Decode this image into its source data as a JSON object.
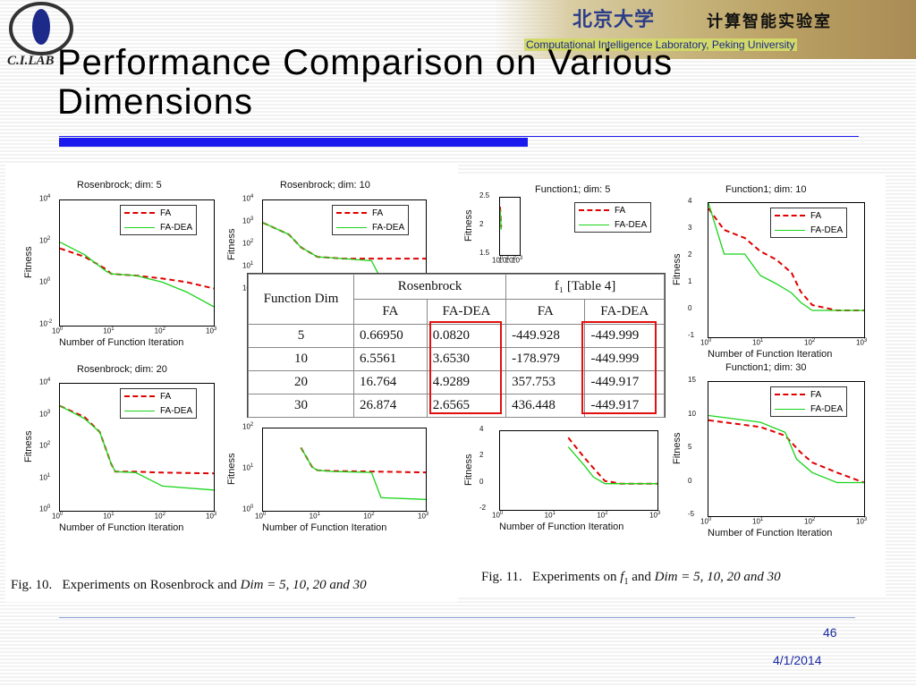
{
  "header": {
    "logo_text": "C.I.LAB",
    "banner_cn_1": "北京大学",
    "banner_cn_2": "计算智能实验室",
    "banner_en": "Computational Intelligence Laboratory, Peking University"
  },
  "title": "Performance Comparison on Various Dimensions",
  "colors": {
    "fa": "#e00000",
    "fa_dea": "#1ad41a",
    "accent": "#1a1aee",
    "highlight": "#e01010"
  },
  "figure_left": {
    "caption_prefix": "Fig. 10.",
    "caption_text": "Experiments on Rosenbrock and",
    "caption_math": "Dim = 5,  10,  20  and  30"
  },
  "figure_right": {
    "caption_prefix": "Fig. 11.",
    "caption_text": "Experiments on",
    "caption_math_f": "f",
    "caption_and": "and",
    "caption_math": "Dim = 5,  10,  20  and  30"
  },
  "table": {
    "h_function_dim": "Function Dim",
    "h_rosenbrock": "Rosenbrock",
    "h_f1": "f₁ [Table 4]",
    "sub": [
      "FA",
      "FA-DEA",
      "FA",
      "FA-DEA"
    ],
    "rows": [
      {
        "dim": "5",
        "r_fa": "0.66950",
        "r_dea": "0.0820",
        "f_fa": "-449.928",
        "f_dea": "-449.999"
      },
      {
        "dim": "10",
        "r_fa": "6.5561",
        "r_dea": "3.6530",
        "f_fa": "-178.979",
        "f_dea": "-449.999"
      },
      {
        "dim": "20",
        "r_fa": "16.764",
        "r_dea": "4.9289",
        "f_fa": "357.753",
        "f_dea": "-449.917"
      },
      {
        "dim": "30",
        "r_fa": "26.874",
        "r_dea": "2.6565",
        "f_fa": "436.448",
        "f_dea": "-449.917"
      }
    ]
  },
  "chart_data": [
    {
      "type": "line",
      "title": "Rosenbrock; dim: 5",
      "xlabel": "Number of Function Iteration",
      "ylabel": "Fitness",
      "x_scale": "log",
      "y_scale": "log",
      "xlim": [
        1,
        1000
      ],
      "ylim": [
        0.01,
        10000
      ],
      "x_ticks": [
        "10^0",
        "10^1",
        "10^2",
        "10^3"
      ],
      "y_ticks": [
        "10^4",
        "10^2",
        "10^0",
        "10^-2"
      ],
      "legend": [
        "FA",
        "FA-DEA"
      ],
      "legend_position": "top-right",
      "series": [
        {
          "name": "FA",
          "x": [
            1,
            3,
            8,
            10,
            30,
            100,
            300,
            1000
          ],
          "y": [
            50,
            20,
            5,
            3,
            2.5,
            1.8,
            1.2,
            0.6
          ]
        },
        {
          "name": "FA-DEA",
          "x": [
            1,
            3,
            8,
            10,
            30,
            100,
            300,
            1000
          ],
          "y": [
            100,
            25,
            4,
            3,
            2.5,
            1.2,
            0.4,
            0.08
          ]
        }
      ]
    },
    {
      "type": "line",
      "title": "Rosenbrock; dim: 10",
      "xlabel": "Number of Function Iteration",
      "ylabel": "Fitness",
      "x_scale": "log",
      "y_scale": "log",
      "xlim": [
        1,
        1000
      ],
      "ylim": [
        1,
        10000
      ],
      "x_ticks": [
        "10^0",
        "10^1",
        "10^2",
        "10^3"
      ],
      "y_ticks": [
        "10^4",
        "10^3",
        "10^2",
        "10^1",
        "10^0"
      ],
      "legend": [
        "FA",
        "FA-DEA"
      ],
      "legend_position": "top-right",
      "series": [
        {
          "name": "FA",
          "x": [
            1,
            3,
            5,
            10,
            30,
            100,
            1000
          ],
          "y": [
            1000,
            300,
            80,
            30,
            25,
            25,
            25
          ]
        },
        {
          "name": "FA-DEA",
          "x": [
            1,
            3,
            5,
            10,
            30,
            100,
            150,
            1000
          ],
          "y": [
            1000,
            300,
            80,
            30,
            25,
            20,
            3,
            2.5
          ]
        }
      ]
    },
    {
      "type": "line",
      "title": "Rosenbrock; dim: 20",
      "xlabel": "Number of Function Iteration",
      "ylabel": "Fitness",
      "x_scale": "log",
      "y_scale": "log",
      "xlim": [
        1,
        1000
      ],
      "ylim": [
        1,
        10000
      ],
      "x_ticks": [
        "10^0",
        "10^1",
        "10^2",
        "10^3"
      ],
      "y_ticks": [
        "10^4",
        "10^3",
        "10^2",
        "10^1",
        "10^0"
      ],
      "legend": [
        "FA",
        "FA-DEA"
      ],
      "legend_position": "top-right",
      "series": [
        {
          "name": "FA",
          "x": [
            1,
            3,
            6,
            10,
            12,
            30,
            100,
            1000
          ],
          "y": [
            2000,
            900,
            300,
            30,
            17,
            17,
            16,
            15
          ]
        },
        {
          "name": "FA-DEA",
          "x": [
            1,
            3,
            6,
            10,
            12,
            30,
            100,
            1000
          ],
          "y": [
            2000,
            800,
            300,
            30,
            17,
            16,
            6,
            4.5
          ]
        }
      ]
    },
    {
      "type": "line",
      "title": "Function1; dim: 5",
      "xlabel": "Number of Function Iteration",
      "ylabel": "Fitness",
      "x_scale": "log",
      "xlim": [
        1,
        1000
      ],
      "ylim": [
        0,
        25000
      ],
      "x_ticks": [
        "10^0",
        "10^1",
        "10^2",
        "10^3"
      ],
      "y_ticks": [
        "2.5",
        "2",
        "1.5"
      ],
      "legend": [
        "FA",
        "FA-DEA"
      ],
      "legend_position": "top-right",
      "series": [
        {
          "name": "FA",
          "x": [
            1,
            1.2,
            1.5
          ],
          "y": [
            21000,
            17000,
            12000
          ]
        },
        {
          "name": "FA-DEA",
          "x": [
            1,
            1.2,
            1.5
          ],
          "y": [
            20000,
            16000,
            11000
          ]
        }
      ]
    },
    {
      "type": "line",
      "title": "Function1; dim: 10",
      "xlabel": "Number of Function Iteration",
      "ylabel": "Fitness",
      "x_scale": "log",
      "xlim": [
        1,
        1000
      ],
      "ylim": [
        -10000,
        40000
      ],
      "x_ticks": [
        "10^0",
        "10^1",
        "10^2",
        "10^3"
      ],
      "y_ticks": [
        "4",
        "3",
        "2",
        "1",
        "0",
        "-1"
      ],
      "legend": [
        "FA",
        "FA-DEA"
      ],
      "legend_position": "top-right",
      "series": [
        {
          "name": "FA",
          "x": [
            1,
            2,
            5,
            10,
            20,
            40,
            60,
            100,
            300,
            1000
          ],
          "y": [
            38000,
            30000,
            27000,
            22000,
            19000,
            14000,
            7000,
            2000,
            0,
            0
          ]
        },
        {
          "name": "FA-DEA",
          "x": [
            1,
            2,
            5,
            10,
            20,
            40,
            60,
            100,
            300,
            1000
          ],
          "y": [
            40000,
            21000,
            21000,
            13000,
            10000,
            6500,
            3000,
            0,
            0,
            0
          ]
        }
      ]
    },
    {
      "type": "line",
      "title": "Function1; dim: 30",
      "xlabel": "Number of Function Iteration",
      "ylabel": "Fitness",
      "x_scale": "log",
      "xlim": [
        1,
        1000
      ],
      "ylim": [
        -50000,
        150000
      ],
      "x_ticks": [
        "10^0",
        "10^1",
        "10^2",
        "10^3"
      ],
      "y_ticks": [
        "15",
        "10",
        "5",
        "0",
        "-5"
      ],
      "legend": [
        "FA",
        "FA-DEA"
      ],
      "legend_position": "top-right",
      "series": [
        {
          "name": "FA",
          "x": [
            1,
            10,
            30,
            60,
            100,
            300,
            1000
          ],
          "y": [
            93000,
            83000,
            70000,
            45000,
            30000,
            15000,
            0
          ]
        },
        {
          "name": "FA-DEA",
          "x": [
            1,
            10,
            30,
            50,
            100,
            300,
            1000
          ],
          "y": [
            100000,
            90000,
            75000,
            35000,
            15000,
            0,
            0
          ]
        }
      ]
    },
    {
      "type": "line",
      "title": "",
      "xlabel": "Number of Function Iteration",
      "ylabel": "Fitness",
      "x_scale": "log",
      "y_scale": "log",
      "xlim": [
        1,
        1000
      ],
      "ylim": [
        1,
        1000
      ],
      "x_ticks": [
        "10^0",
        "10^1",
        "10^2",
        "10^3"
      ],
      "y_ticks": [
        "10^2",
        "10^1",
        "10^0"
      ],
      "legend": [],
      "legend_position": "none",
      "series": [
        {
          "name": "FA",
          "x": [
            5,
            8,
            10,
            20,
            100,
            1000
          ],
          "y": [
            200,
            40,
            30,
            28,
            27,
            25
          ]
        },
        {
          "name": "FA-DEA",
          "x": [
            5,
            8,
            10,
            20,
            100,
            150,
            1000
          ],
          "y": [
            200,
            40,
            30,
            27,
            25,
            3,
            2.6
          ]
        }
      ]
    },
    {
      "type": "line",
      "title": "",
      "xlabel": "Number of Function Iteration",
      "ylabel": "Fitness",
      "x_scale": "log",
      "xlim": [
        1,
        1000
      ],
      "ylim": [
        -20000,
        40000
      ],
      "x_ticks": [
        "10^0",
        "10^1",
        "10^2",
        "10^3"
      ],
      "y_ticks": [
        "4",
        "2",
        "0",
        "-2"
      ],
      "legend": [],
      "legend_position": "none",
      "series": [
        {
          "name": "FA",
          "x": [
            20,
            40,
            60,
            100,
            200,
            1000
          ],
          "y": [
            35000,
            20000,
            12000,
            2000,
            0,
            0
          ]
        },
        {
          "name": "FA-DEA",
          "x": [
            20,
            40,
            60,
            100,
            200,
            1000
          ],
          "y": [
            28000,
            14000,
            5000,
            0,
            0,
            0
          ]
        }
      ]
    }
  ],
  "footer": {
    "page": "46",
    "date": "4/1/2014"
  }
}
